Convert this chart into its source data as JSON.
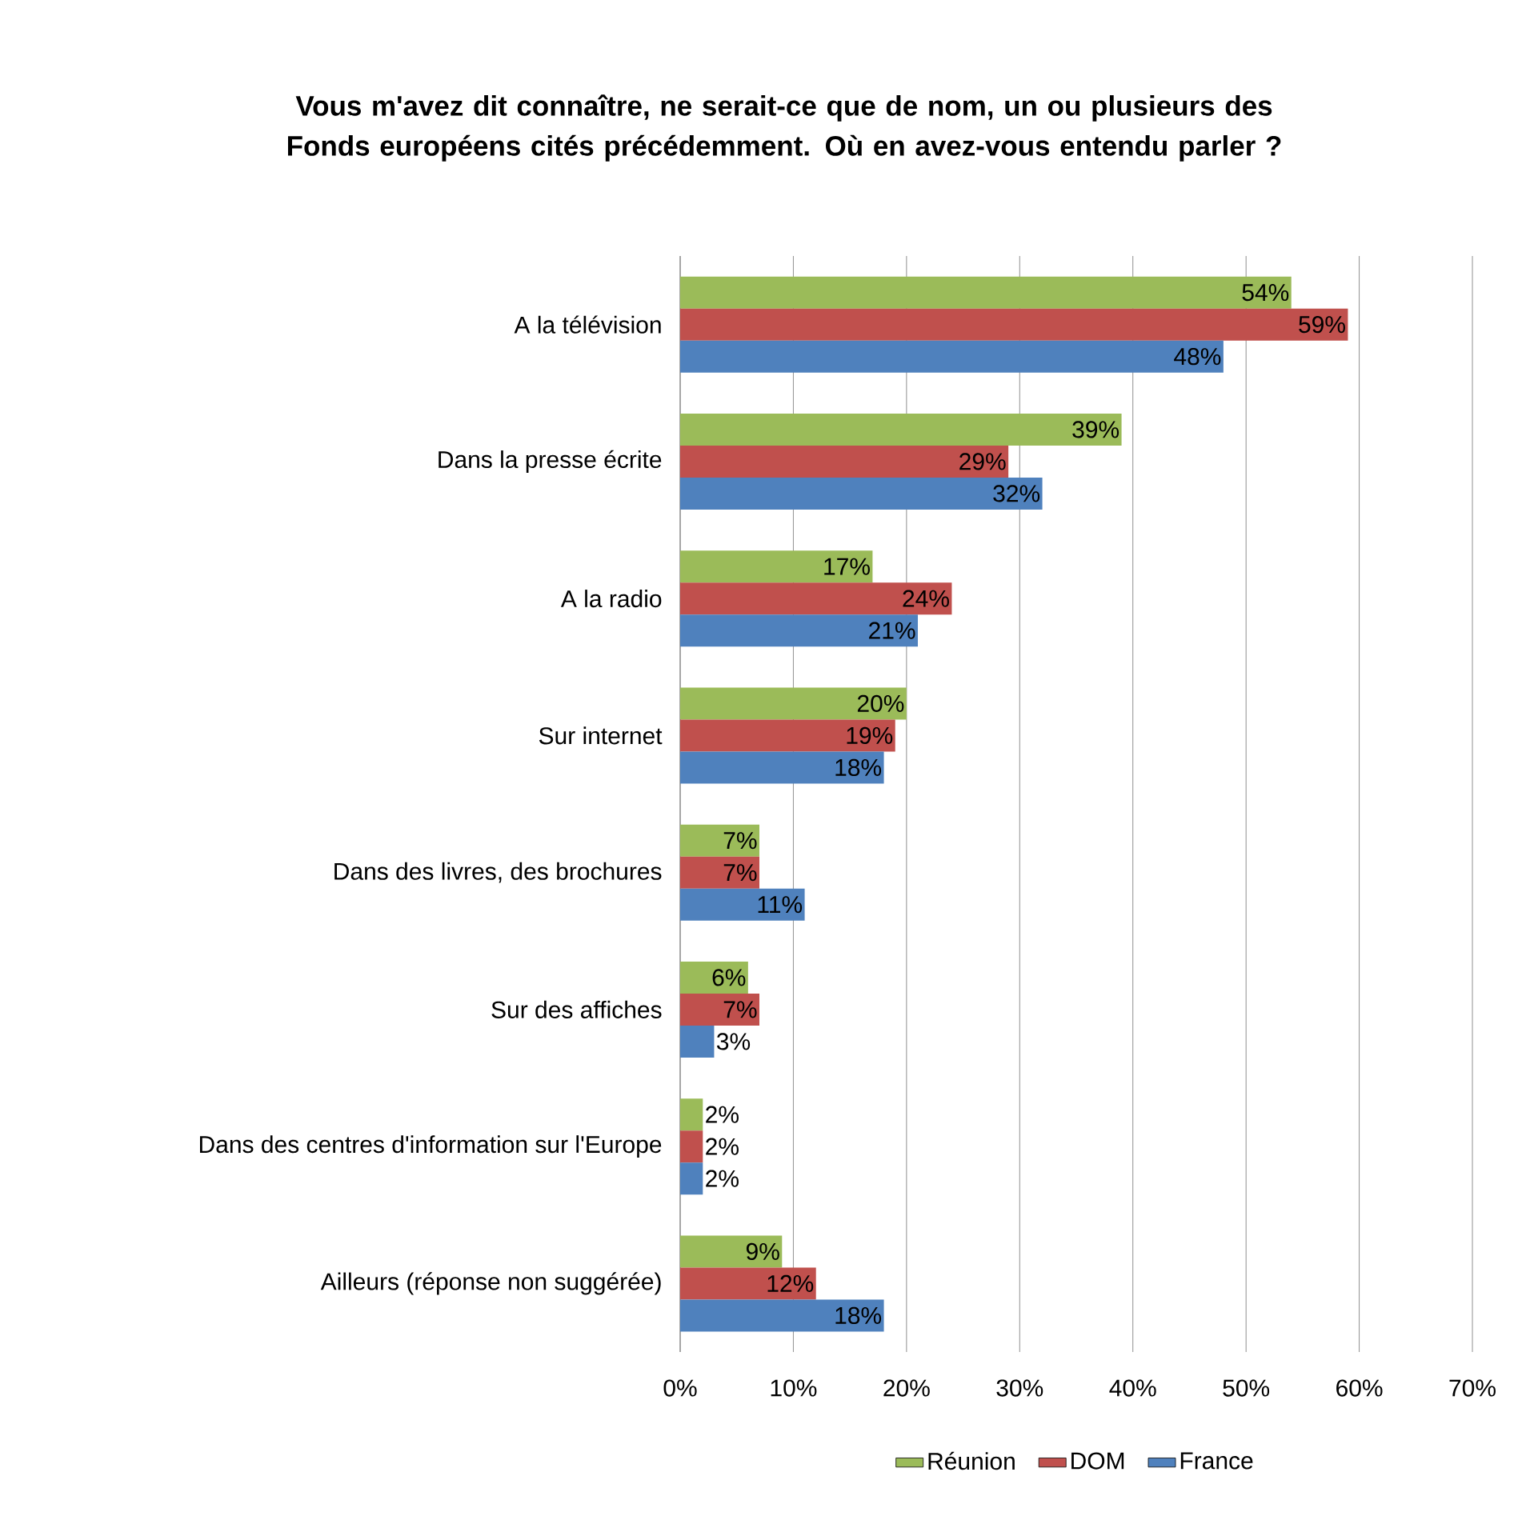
{
  "chart_data": {
    "type": "bar",
    "orientation": "horizontal",
    "title": "Vous m'avez dit connaître, ne serait-ce que de nom, un ou plusieurs des Fonds européens cités précédemment. Où en avez-vous entendu parler ?",
    "categories": [
      "A la télévision",
      "Dans la presse écrite",
      "A la radio",
      "Sur internet",
      "Dans des livres, des brochures",
      "Sur des affiches",
      "Dans des centres d'information sur l'Europe",
      "Ailleurs (réponse non suggérée)"
    ],
    "series": [
      {
        "name": "Réunion",
        "color": "#9bbb59",
        "values": [
          54,
          39,
          17,
          20,
          7,
          6,
          2,
          9
        ],
        "value_labels": [
          "54%",
          "39%",
          "17%",
          "20%",
          "7%",
          "6%",
          "2%",
          "9%"
        ]
      },
      {
        "name": "DOM",
        "color": "#c0504d",
        "values": [
          59,
          29,
          24,
          19,
          7,
          7,
          2,
          12
        ],
        "value_labels": [
          "59%",
          "29%",
          "24%",
          "19%",
          "7%",
          "7%",
          "2%",
          "12%"
        ]
      },
      {
        "name": "France",
        "color": "#4f81bd",
        "values": [
          48,
          32,
          21,
          18,
          11,
          3,
          2,
          18
        ],
        "value_labels": [
          "48%",
          "32%",
          "21%",
          "18%",
          "11%",
          "3%",
          "2%",
          "18%"
        ]
      }
    ],
    "xlim": [
      0,
      70
    ],
    "xticks": [
      {
        "value": 0,
        "label": "0%"
      },
      {
        "value": 10,
        "label": "10%"
      },
      {
        "value": 20,
        "label": "20%"
      },
      {
        "value": 30,
        "label": "30%"
      },
      {
        "value": 40,
        "label": "40%"
      },
      {
        "value": 50,
        "label": "50%"
      },
      {
        "value": 60,
        "label": "60%"
      },
      {
        "value": 70,
        "label": "70%"
      }
    ],
    "grid": "x",
    "legend": "bottom"
  }
}
